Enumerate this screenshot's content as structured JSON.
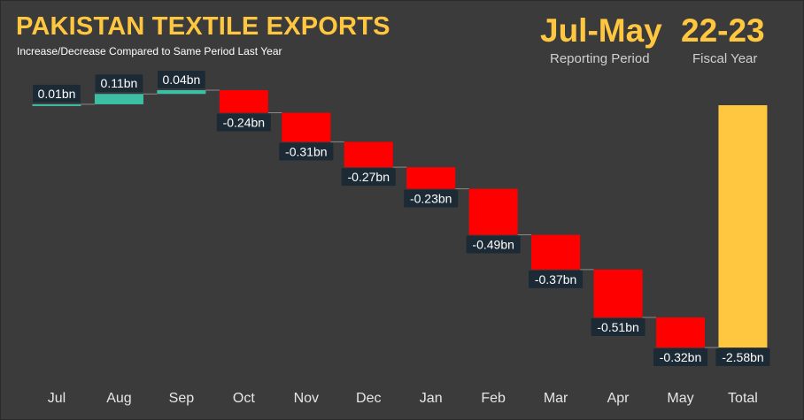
{
  "header": {
    "title": "PAKISTAN TEXTILE EXPORTS",
    "subtitle": "Increase/Decrease Compared to Same Period Last Year",
    "period_value": "Jul-May",
    "period_label": "Reporting Period",
    "fy_value": "22-23",
    "fy_label": "Fiscal Year"
  },
  "colors": {
    "increase": "#3cbfa4",
    "decrease": "#ff0000",
    "total": "#ffc640",
    "label_bg": "#1c2a36"
  },
  "chart_data": {
    "type": "waterfall",
    "title": "PAKISTAN TEXTILE EXPORTS",
    "subtitle": "Increase/Decrease Compared to Same Period Last Year",
    "categories": [
      "Jul",
      "Aug",
      "Sep",
      "Oct",
      "Nov",
      "Dec",
      "Jan",
      "Feb",
      "Mar",
      "Apr",
      "May",
      "Total"
    ],
    "values": [
      0.01,
      0.11,
      0.04,
      -0.24,
      -0.31,
      -0.27,
      -0.23,
      -0.49,
      -0.37,
      -0.51,
      -0.32,
      -2.58
    ],
    "labels": [
      "0.01bn",
      "0.11bn",
      "0.04bn",
      "-0.24bn",
      "-0.31bn",
      "-0.27bn",
      "-0.23bn",
      "-0.49bn",
      "-0.37bn",
      "-0.51bn",
      "-0.32bn",
      "-2.58bn"
    ],
    "is_total": [
      false,
      false,
      false,
      false,
      false,
      false,
      false,
      false,
      false,
      false,
      false,
      true
    ],
    "unit": "bn",
    "ylim": [
      -2.58,
      0.16
    ],
    "grid": false,
    "legend": "none"
  }
}
